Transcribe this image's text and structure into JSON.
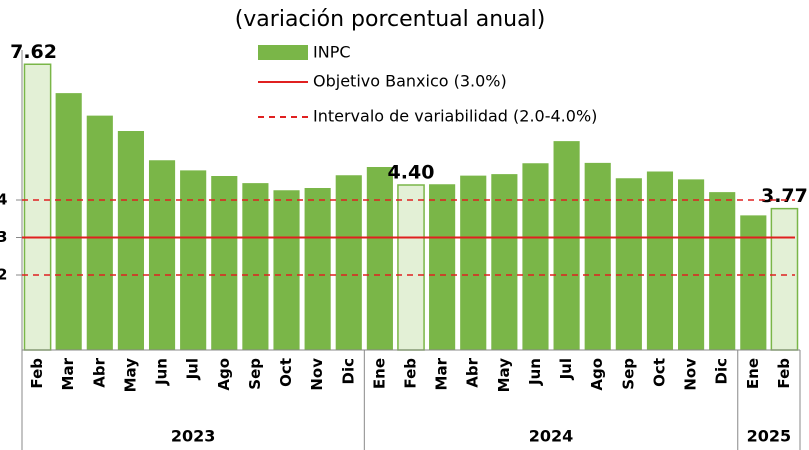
{
  "chart_data": {
    "type": "bar",
    "subtitle": "(variación porcentual anual)",
    "groups": [
      {
        "label": "2023",
        "categories": [
          "Feb",
          "Mar",
          "Abr",
          "May",
          "Jun",
          "Jul",
          "Ago",
          "Sep",
          "Oct",
          "Nov",
          "Dic"
        ]
      },
      {
        "label": "2024",
        "categories": [
          "Ene",
          "Feb",
          "Mar",
          "Abr",
          "May",
          "Jun",
          "Jul",
          "Ago",
          "Sep",
          "Oct",
          "Nov",
          "Dic"
        ]
      },
      {
        "label": "2025",
        "categories": [
          "Ene",
          "Feb"
        ]
      }
    ],
    "series": [
      {
        "name": "INPC",
        "color": "#7ab648",
        "highlight_color": "#e3f0d6",
        "values": [
          7.62,
          6.85,
          6.25,
          5.84,
          5.06,
          4.79,
          4.64,
          4.45,
          4.26,
          4.32,
          4.66,
          4.88,
          4.4,
          4.42,
          4.65,
          4.69,
          4.98,
          5.57,
          4.99,
          4.58,
          4.76,
          4.55,
          4.21,
          3.59,
          3.77
        ],
        "value_labels": [
          "7.62",
          null,
          null,
          null,
          null,
          null,
          null,
          null,
          null,
          null,
          null,
          null,
          "4.40",
          null,
          null,
          null,
          null,
          null,
          null,
          null,
          null,
          null,
          null,
          null,
          "3.77"
        ]
      }
    ],
    "reference_lines": [
      {
        "name": "Objetivo Banxico (3.0%)",
        "value": 3,
        "color": "#e02020",
        "style": "solid"
      },
      {
        "name": "Intervalo de variabilidad (2.0-4.0%)",
        "value": 4,
        "color": "#e02020",
        "style": "dashed"
      },
      {
        "value": 2,
        "color": "#e02020",
        "style": "dashed"
      }
    ],
    "ylim": [
      0,
      8
    ],
    "yticks": [
      2,
      3,
      4
    ]
  }
}
